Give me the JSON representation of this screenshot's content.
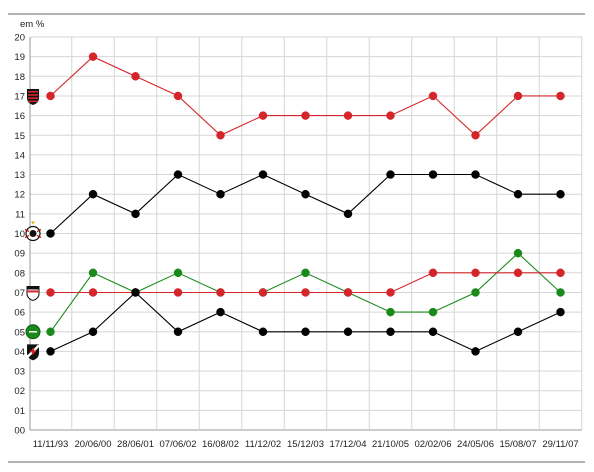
{
  "chart_data": {
    "type": "line",
    "ylabel": "em %",
    "ylim": [
      0,
      20
    ],
    "y_ticks": [
      "00",
      "01",
      "02",
      "03",
      "04",
      "05",
      "06",
      "07",
      "08",
      "09",
      "10",
      "11",
      "12",
      "13",
      "14",
      "15",
      "16",
      "17",
      "18",
      "19",
      "20"
    ],
    "categories": [
      "11/11/93",
      "20/06/00",
      "28/06/01",
      "07/06/02",
      "16/08/02",
      "11/12/02",
      "15/12/03",
      "17/12/04",
      "21/10/05",
      "02/02/06",
      "24/05/06",
      "15/08/07",
      "29/11/07"
    ],
    "grid": true,
    "legend": "team crests at left of each series",
    "series": [
      {
        "color": "#d4252a",
        "crest": "flamengo-crest-icon",
        "values": [
          17,
          19,
          18,
          17,
          15,
          16,
          16,
          16,
          16,
          17,
          15,
          17,
          17
        ]
      },
      {
        "color": "#000000",
        "crest": "corinthians-crest-icon",
        "values": [
          10,
          12,
          11,
          13,
          12,
          13,
          12,
          11,
          13,
          13,
          13,
          12,
          12
        ]
      },
      {
        "color": "#1a8a1a",
        "crest": "palmeiras-crest-icon",
        "values": [
          5,
          8,
          7,
          8,
          7,
          7,
          8,
          7,
          6,
          6,
          7,
          9,
          7
        ]
      },
      {
        "color": "#d4252a",
        "crest": "sao-paulo-crest-icon",
        "values": [
          7,
          7,
          7,
          7,
          7,
          7,
          7,
          7,
          7,
          8,
          8,
          8,
          8
        ]
      },
      {
        "color": "#000000",
        "crest": "vasco-crest-icon",
        "values": [
          4,
          5,
          7,
          5,
          6,
          5,
          5,
          5,
          5,
          5,
          4,
          5,
          6
        ]
      }
    ]
  }
}
